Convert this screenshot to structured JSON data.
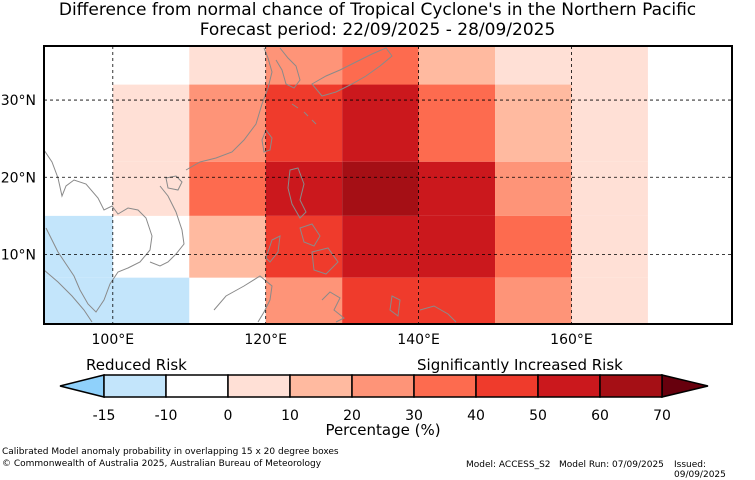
{
  "title": {
    "line1": "Difference from normal chance of Tropical Cyclone's in the Northern Pacific",
    "line2": "Forecast period: 22/09/2025 - 28/09/2025"
  },
  "map": {
    "lon_range": [
      91,
      181
    ],
    "lat_range": [
      1,
      37
    ],
    "lat_labels": [
      "30°N",
      "20°N",
      "10°N"
    ],
    "lon_labels": [
      "100°E",
      "120°E",
      "140°E",
      "160°E"
    ],
    "grid_lats": [
      30,
      20,
      10
    ],
    "grid_lons": [
      100,
      120,
      140,
      160
    ],
    "cells": [
      {
        "lon0": 110,
        "lon1": 120,
        "lat0": 30,
        "lat1": 37,
        "value": 5
      },
      {
        "lon0": 120,
        "lon1": 130,
        "lat0": 30,
        "lat1": 37,
        "value": 25
      },
      {
        "lon0": 130,
        "lon1": 140,
        "lat0": 30,
        "lat1": 37,
        "value": 35
      },
      {
        "lon0": 140,
        "lon1": 150,
        "lat0": 30,
        "lat1": 37,
        "value": 15
      },
      {
        "lon0": 150,
        "lon1": 160,
        "lat0": 30,
        "lat1": 37,
        "value": 5
      },
      {
        "lon0": 160,
        "lon1": 170,
        "lat0": 30,
        "lat1": 37,
        "value": 5
      },
      {
        "lon0": 100,
        "lon1": 110,
        "lat0": 22,
        "lat1": 32,
        "value": 5
      },
      {
        "lon0": 110,
        "lon1": 120,
        "lat0": 22,
        "lat1": 32,
        "value": 25
      },
      {
        "lon0": 120,
        "lon1": 130,
        "lat0": 22,
        "lat1": 32,
        "value": 45
      },
      {
        "lon0": 130,
        "lon1": 140,
        "lat0": 22,
        "lat1": 32,
        "value": 55
      },
      {
        "lon0": 140,
        "lon1": 150,
        "lat0": 22,
        "lat1": 32,
        "value": 35
      },
      {
        "lon0": 150,
        "lon1": 160,
        "lat0": 22,
        "lat1": 32,
        "value": 15
      },
      {
        "lon0": 160,
        "lon1": 170,
        "lat0": 22,
        "lat1": 32,
        "value": 5
      },
      {
        "lon0": 100,
        "lon1": 110,
        "lat0": 15,
        "lat1": 22,
        "value": 5
      },
      {
        "lon0": 110,
        "lon1": 120,
        "lat0": 15,
        "lat1": 22,
        "value": 35
      },
      {
        "lon0": 120,
        "lon1": 130,
        "lat0": 15,
        "lat1": 22,
        "value": 60
      },
      {
        "lon0": 130,
        "lon1": 140,
        "lat0": 15,
        "lat1": 22,
        "value": 70
      },
      {
        "lon0": 140,
        "lon1": 150,
        "lat0": 15,
        "lat1": 22,
        "value": 55
      },
      {
        "lon0": 150,
        "lon1": 160,
        "lat0": 15,
        "lat1": 22,
        "value": 25
      },
      {
        "lon0": 160,
        "lon1": 170,
        "lat0": 15,
        "lat1": 22,
        "value": 5
      },
      {
        "lon0": 91,
        "lon1": 100,
        "lat0": 7,
        "lat1": 15,
        "value": -10
      },
      {
        "lon0": 110,
        "lon1": 120,
        "lat0": 7,
        "lat1": 15,
        "value": 15
      },
      {
        "lon0": 120,
        "lon1": 130,
        "lat0": 7,
        "lat1": 15,
        "value": 45
      },
      {
        "lon0": 130,
        "lon1": 140,
        "lat0": 7,
        "lat1": 15,
        "value": 60
      },
      {
        "lon0": 140,
        "lon1": 150,
        "lat0": 7,
        "lat1": 15,
        "value": 55
      },
      {
        "lon0": 150,
        "lon1": 160,
        "lat0": 7,
        "lat1": 15,
        "value": 35
      },
      {
        "lon0": 160,
        "lon1": 170,
        "lat0": 7,
        "lat1": 15,
        "value": 5
      },
      {
        "lon0": 91,
        "lon1": 110,
        "lat0": 1,
        "lat1": 7,
        "value": -15
      },
      {
        "lon0": 120,
        "lon1": 130,
        "lat0": 1,
        "lat1": 7,
        "value": 25
      },
      {
        "lon0": 130,
        "lon1": 140,
        "lat0": 1,
        "lat1": 7,
        "value": 45
      },
      {
        "lon0": 140,
        "lon1": 150,
        "lat0": 1,
        "lat1": 7,
        "value": 45
      },
      {
        "lon0": 150,
        "lon1": 160,
        "lat0": 1,
        "lat1": 7,
        "value": 25
      },
      {
        "lon0": 160,
        "lon1": 170,
        "lat0": 1,
        "lat1": 7,
        "value": 5
      }
    ]
  },
  "legend": {
    "reduced_label": "Reduced Risk",
    "increased_label": "Significantly Increased Risk",
    "xlabel": "Percentage (%)",
    "ticks": [
      "-15",
      "-10",
      "0",
      "10",
      "20",
      "30",
      "40",
      "50",
      "60",
      "70"
    ],
    "colors": {
      "below": "#8fd1fb",
      "bins": [
        "#c3e5fb",
        "#ffffff",
        "#ffe0d6",
        "#ffbaa0",
        "#fe9478",
        "#fd6b4f",
        "#ef3b2c",
        "#cb181d",
        "#a50f15"
      ],
      "above": "#67000d"
    }
  },
  "footer": {
    "note": "Calibrated Model anomaly probability in overlapping 15 x 20 degree boxes",
    "copyright": "© Commonwealth of Australia 2025, Australian Bureau of Meteorology",
    "model": "Model: ACCESS_S2",
    "model_run": "Model Run: 07/09/2025",
    "issued": "Issued: 09/09/2025"
  }
}
